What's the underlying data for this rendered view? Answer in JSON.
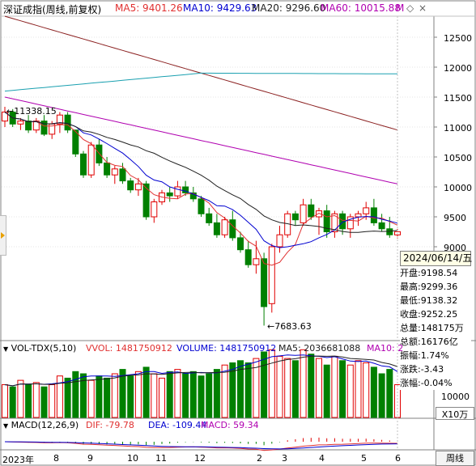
{
  "main_panel": {
    "title": "深证成指(周线,前复权)",
    "ma": [
      {
        "label": "MA5: 9401.26",
        "color": "#e03030"
      },
      {
        "label": "MA10: 9429.63",
        "color": "#0000d0"
      },
      {
        "label": "MA20: 9296.60",
        "color": "#202020"
      },
      {
        "label": "MA60: 10015.88",
        "color": "#b000b0"
      }
    ],
    "ma60_trail": "M",
    "high_label": "11338.15",
    "low_label": "7683.63",
    "y_ticks": [
      "12500",
      "12000",
      "11500",
      "11000",
      "10500",
      "10000",
      "9500",
      "9000"
    ]
  },
  "info_box": {
    "date": "2024/06/14/五",
    "open": "开盘:9198.54",
    "high": "最高:9299.36",
    "low": "最低:9138.32",
    "close": "收盘:9252.25",
    "volume": "总量:148175万",
    "amount": "总额:16176亿",
    "amplitude": "振幅:1.74%",
    "change": "涨跌:-3.43",
    "pct": "涨幅:-0.04%"
  },
  "vol_panel": {
    "title": "VOL-TDX(5,10)",
    "vvol": "VVOL: 1481750912",
    "volume": "VOLUME: 1481750912",
    "ma5": "MA5: 2036681088",
    "ma10": "MA10: 2",
    "y_tick": "10000",
    "unit": "X10万"
  },
  "macd_panel": {
    "title": "MACD(12,26,9)",
    "dif": "DIF: -79.78",
    "dea": "DEA: -109.44",
    "macd": "MACD: 59.34"
  },
  "x_axis": {
    "labels": [
      "2023年",
      "8",
      "9",
      "10",
      "11",
      "12",
      "2",
      "3",
      "4",
      "5",
      "6"
    ]
  },
  "period_tab": "周线",
  "colors": {
    "up": "#e00000",
    "down": "#008000",
    "ma5": "#e03030",
    "ma10": "#0000d0",
    "ma20": "#202020",
    "ma60": "#b000b0",
    "ma_long": "#8b2020",
    "ma_top": "#1aa0b0"
  },
  "chart_data": {
    "type": "candlestick",
    "candles": [
      [
        11100,
        11338,
        11000,
        11250
      ],
      [
        11250,
        11300,
        11000,
        11050
      ],
      [
        11050,
        11150,
        10950,
        11100
      ],
      [
        11100,
        11200,
        10900,
        10950
      ],
      [
        10950,
        11150,
        10900,
        11100
      ],
      [
        11100,
        11200,
        10850,
        10880
      ],
      [
        10880,
        11100,
        10800,
        11050
      ],
      [
        11050,
        11250,
        10900,
        11200
      ],
      [
        11200,
        11250,
        10900,
        10950
      ],
      [
        10950,
        10950,
        10500,
        10550
      ],
      [
        10550,
        10600,
        10150,
        10200
      ],
      [
        10200,
        10750,
        10150,
        10700
      ],
      [
        10700,
        10800,
        10350,
        10400
      ],
      [
        10400,
        10500,
        10150,
        10200
      ],
      [
        10200,
        10350,
        10050,
        10300
      ],
      [
        10300,
        10400,
        10050,
        10100
      ],
      [
        10100,
        10150,
        9900,
        9950
      ],
      [
        9950,
        10150,
        9850,
        10050
      ],
      [
        10050,
        10100,
        9450,
        9500
      ],
      [
        9500,
        9800,
        9400,
        9750
      ],
      [
        9750,
        9950,
        9700,
        9900
      ],
      [
        9900,
        10000,
        9750,
        9850
      ],
      [
        9850,
        10100,
        9800,
        10000
      ],
      [
        10000,
        10100,
        9850,
        9900
      ],
      [
        9900,
        10000,
        9750,
        9800
      ],
      [
        9800,
        9850,
        9500,
        9550
      ],
      [
        9550,
        9650,
        9350,
        9400
      ],
      [
        9400,
        9550,
        9150,
        9200
      ],
      [
        9200,
        9500,
        9150,
        9450
      ],
      [
        9450,
        9600,
        9100,
        9150
      ],
      [
        9150,
        9250,
        8900,
        8950
      ],
      [
        8950,
        9100,
        8650,
        8700
      ],
      [
        8700,
        9100,
        8550,
        8800
      ],
      [
        8800,
        8900,
        7683,
        8000
      ],
      [
        8050,
        9050,
        7900,
        9000
      ],
      [
        9000,
        9350,
        8900,
        9200
      ],
      [
        9200,
        9600,
        9150,
        9550
      ],
      [
        9550,
        9600,
        9350,
        9450
      ],
      [
        9400,
        9800,
        9350,
        9700
      ],
      [
        9700,
        9800,
        9450,
        9500
      ],
      [
        9500,
        9650,
        9200,
        9600
      ],
      [
        9600,
        9700,
        9150,
        9250
      ],
      [
        9250,
        9600,
        9150,
        9550
      ],
      [
        9550,
        9600,
        9200,
        9300
      ],
      [
        9300,
        9550,
        9150,
        9500
      ],
      [
        9500,
        9600,
        9350,
        9550
      ],
      [
        9550,
        9750,
        9450,
        9650
      ],
      [
        9650,
        9800,
        9350,
        9400
      ],
      [
        9400,
        9550,
        9250,
        9300
      ],
      [
        9300,
        9500,
        9150,
        9200
      ],
      [
        9198,
        9299,
        9138,
        9252
      ]
    ],
    "volumes": [
      15,
      14,
      17,
      15,
      16,
      14,
      15,
      19,
      18,
      21,
      20,
      17,
      19,
      18,
      20,
      22,
      19,
      21,
      23,
      20,
      18,
      21,
      22,
      20,
      21,
      19,
      20,
      22,
      24,
      25,
      26,
      25,
      27,
      30,
      31,
      28,
      27,
      26,
      31,
      29,
      27,
      24,
      28,
      26,
      24,
      26,
      25,
      23,
      20,
      22,
      15
    ]
  }
}
